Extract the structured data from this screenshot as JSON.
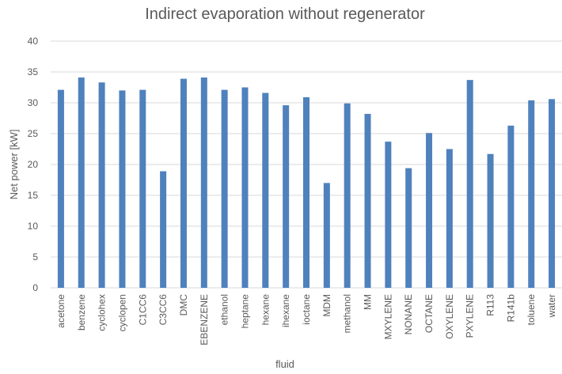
{
  "chart_data": {
    "type": "bar",
    "title": "Indirect evaporation without regenerator",
    "x_label": "fluid",
    "y_label": "Net power [kW]",
    "categories": [
      "acetone",
      "benzene",
      "cyclohex",
      "cyclopen",
      "C1CC6",
      "C3CC6",
      "DMC",
      "EBENZENE",
      "ethanol",
      "heptane",
      "hexane",
      "ihexane",
      "ioctane",
      "MDM",
      "methanol",
      "MM",
      "MXYLENE",
      "NONANE",
      "OCTANE",
      "OXYLENE",
      "PXYLENE",
      "R113",
      "R141b",
      "toluene",
      "water"
    ],
    "values": [
      32.1,
      34.1,
      33.3,
      32,
      32.1,
      18.9,
      33.9,
      34.1,
      32.1,
      32.5,
      31.6,
      29.6,
      30.9,
      17,
      29.9,
      28.2,
      23.7,
      19.4,
      25.1,
      22.5,
      33.7,
      21.7,
      26.3,
      30.4,
      30.6
    ],
    "color": "#4f81bd",
    "ylim": [
      0,
      40
    ],
    "yticks": [
      0,
      5,
      10,
      15,
      20,
      25,
      30,
      35,
      40
    ],
    "grid": true
  }
}
